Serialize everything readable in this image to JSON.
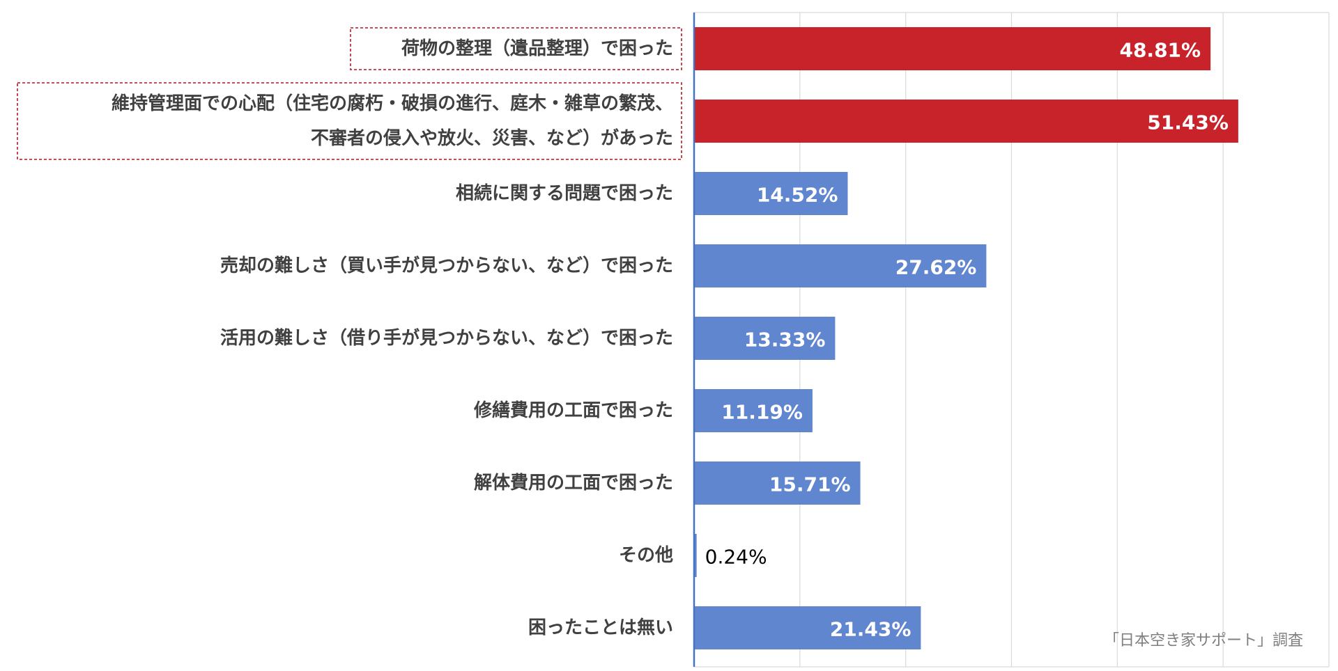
{
  "chart_data": {
    "type": "bar",
    "orientation": "horizontal",
    "categories": [
      [
        "荷物の整理（遺品整理）で困った"
      ],
      [
        "維持管理面での心配（住宅の腐朽・破損の進行、庭木・雑草の繁茂、",
        "不審者の侵入や放火、災害、など）があった"
      ],
      [
        "相続に関する問題で困った"
      ],
      [
        "売却の難しさ（買い手が見つからない、など）で困った"
      ],
      [
        "活用の難しさ（借り手が見つからない、など）で困った"
      ],
      [
        "修繕費用の工面で困った"
      ],
      [
        "解体費用の工面で困った"
      ],
      [
        "その他"
      ],
      [
        "困ったことは無い"
      ]
    ],
    "values": [
      48.81,
      51.43,
      14.52,
      27.62,
      13.33,
      11.19,
      15.71,
      0.24,
      21.43
    ],
    "value_labels": [
      "48.81%",
      "51.43%",
      "14.52%",
      "27.62%",
      "13.33%",
      "11.19%",
      "15.71%",
      "0.24%",
      "21.43%"
    ],
    "highlighted": [
      true,
      true,
      false,
      false,
      false,
      false,
      false,
      false,
      false
    ],
    "xlim": [
      0,
      60
    ],
    "grid": true,
    "legend": "none"
  },
  "colors": {
    "bar": "#6086cf",
    "highlight_bar": "#c8232a",
    "highlight_box": "#c0343a",
    "grid": "#d9d9d9",
    "axis": "#4472c4"
  },
  "source_note": "「日本空き家サポート」調査"
}
